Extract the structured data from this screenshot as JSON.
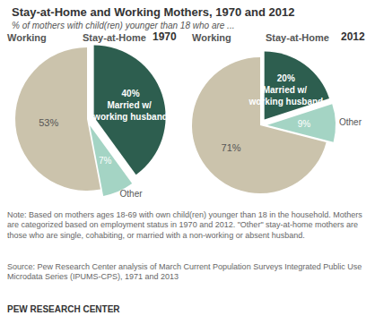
{
  "title": "Stay-at-Home and Working Mothers, 1970 and 2012",
  "subtitle": "% of mothers with child(ren) younger than 18 who are ...",
  "note": "Note: Based on mothers ages 18-69 with own child(ren) younger than 18 in the household. Mothers are categorized based on employment status in 1970 and 2012. \"Other\" stay-at-home mothers are those who are single, cohabiting, or married with a non-working or absent husband.",
  "source": "Source: Pew Research Center analysis of March Current Population Surveys Integrated Public Use Microdata Series (IPUMS-CPS), 1971 and 2013",
  "footer": "PEW RESEARCH CENTER",
  "chart_data": [
    {
      "type": "pie",
      "title": "1970",
      "headers": [
        "Working",
        "Stay-at-Home"
      ],
      "categories": [
        "Married w/ working husband",
        "Other",
        "Working"
      ],
      "values": [
        40,
        7,
        53
      ],
      "value_labels": [
        "40%",
        "7%",
        "53%"
      ],
      "colors": [
        "#2d5e4f",
        "#a4d4c4",
        "#cbc3ac"
      ],
      "data_labels": true
    },
    {
      "type": "pie",
      "title": "2012",
      "headers": [
        "Working",
        "Stay-at-Home"
      ],
      "categories": [
        "Married w/ working husband",
        "Other",
        "Working"
      ],
      "values": [
        20,
        9,
        71
      ],
      "value_labels": [
        "20%",
        "9%",
        "71%"
      ],
      "colors": [
        "#2d5e4f",
        "#a4d4c4",
        "#cbc3ac"
      ],
      "data_labels": true
    }
  ]
}
